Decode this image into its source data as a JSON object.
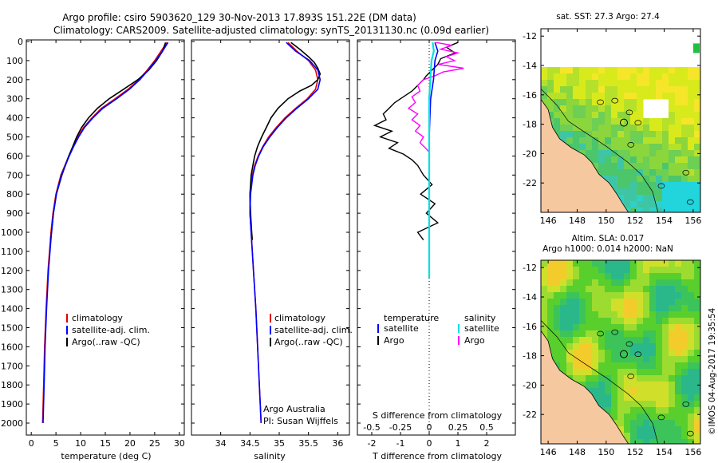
{
  "header": {
    "line1": "Argo profile: csiro 5903620_129 30-Nov-2013 17.893S 151.22E (DM data)",
    "line2": "Climatology: CARS2009. Satellite-adjusted climatology: synTS_20131130.nc (0.09d earlier)"
  },
  "footer_stamp": "©IMOS 04-Aug-2017 19:35:54",
  "colors": {
    "climatology": "#e00000",
    "satellite": "#0000ff",
    "argo": "#000000",
    "sal_satellite": "#00e0e0",
    "sal_argo": "#ff00ff",
    "land": "#f6c8a0"
  },
  "chart_data": [
    {
      "type": "line",
      "id": "temperature",
      "xlabel": "temperature (deg C)",
      "xlim": [
        -1,
        31
      ],
      "xticks": [
        0,
        5,
        10,
        15,
        20,
        25,
        30
      ],
      "ylim": [
        2000,
        0
      ],
      "yticks": [
        0,
        100,
        200,
        300,
        400,
        500,
        600,
        700,
        800,
        900,
        1000,
        1100,
        1200,
        1300,
        1400,
        1500,
        1600,
        1700,
        1800,
        1900,
        2000
      ],
      "legend": [
        "climatology",
        "satellite-adj. clim.",
        "Argo(..raw -QC)"
      ],
      "series": [
        {
          "name": "climatology",
          "depth": [
            5,
            50,
            100,
            150,
            200,
            250,
            300,
            350,
            400,
            450,
            500,
            550,
            600,
            650,
            700,
            800,
            900,
            1000,
            1200,
            1400,
            1600,
            1800,
            2000
          ],
          "values": [
            27.5,
            26.3,
            25.0,
            23.5,
            21.8,
            19.6,
            17.0,
            14.2,
            12.3,
            10.6,
            9.4,
            8.5,
            7.6,
            6.8,
            6.0,
            5.0,
            4.4,
            4.0,
            3.4,
            3.0,
            2.7,
            2.5,
            2.3
          ]
        },
        {
          "name": "satellite-adj. clim.",
          "depth": [
            5,
            50,
            100,
            150,
            200,
            250,
            300,
            350,
            400,
            450,
            500,
            550,
            600,
            650,
            700,
            800,
            900,
            1000,
            1200,
            1400,
            1600,
            1800,
            2000
          ],
          "values": [
            27.7,
            26.6,
            25.2,
            23.7,
            22.0,
            19.9,
            17.3,
            14.5,
            12.5,
            10.8,
            9.6,
            8.6,
            7.7,
            6.9,
            6.1,
            5.1,
            4.5,
            4.1,
            3.5,
            3.1,
            2.8,
            2.6,
            2.4
          ]
        },
        {
          "name": "Argo",
          "depth": [
            5,
            50,
            100,
            150,
            200,
            250,
            300,
            350,
            400,
            450,
            500,
            550,
            600,
            650,
            700,
            800,
            900,
            1000,
            1040
          ],
          "values": [
            27.2,
            26.6,
            25.4,
            23.8,
            21.6,
            18.7,
            15.8,
            13.4,
            11.6,
            10.2,
            9.2,
            8.4,
            7.6,
            6.9,
            6.2,
            5.1,
            4.5,
            4.1,
            3.9
          ]
        }
      ]
    },
    {
      "type": "line",
      "id": "salinity",
      "xlabel": "salinity",
      "xlim": [
        33.5,
        36.2
      ],
      "xticks": [
        34,
        34.5,
        35,
        35.5,
        36
      ],
      "ylim": [
        2000,
        0
      ],
      "legend": [
        "climatology",
        "satellite-adj. clim.",
        "Argo(..raw -QC)"
      ],
      "annotation": [
        "Argo Australia",
        "PI: Susan Wijffels"
      ],
      "series": [
        {
          "name": "climatology",
          "depth": [
            5,
            50,
            100,
            150,
            200,
            250,
            300,
            350,
            400,
            450,
            500,
            550,
            600,
            650,
            700,
            800,
            900,
            1000,
            1200,
            1400,
            1600,
            1800,
            2000
          ],
          "values": [
            35.15,
            35.3,
            35.5,
            35.62,
            35.66,
            35.62,
            35.48,
            35.28,
            35.1,
            34.95,
            34.82,
            34.72,
            34.64,
            34.58,
            34.54,
            34.5,
            34.5,
            34.52,
            34.56,
            34.6,
            34.63,
            34.66,
            34.69
          ]
        },
        {
          "name": "satellite-adj. clim.",
          "depth": [
            5,
            50,
            100,
            150,
            200,
            250,
            300,
            350,
            400,
            450,
            500,
            550,
            600,
            650,
            700,
            800,
            900,
            1000,
            1200,
            1400,
            1600,
            1800,
            2000
          ],
          "values": [
            35.12,
            35.28,
            35.52,
            35.66,
            35.7,
            35.66,
            35.5,
            35.3,
            35.12,
            34.97,
            34.84,
            34.73,
            34.65,
            34.59,
            34.55,
            34.51,
            34.5,
            34.52,
            34.56,
            34.6,
            34.63,
            34.66,
            34.69
          ]
        },
        {
          "name": "Argo",
          "depth": [
            5,
            40,
            80,
            110,
            140,
            170,
            200,
            230,
            260,
            300,
            350,
            400,
            450,
            500,
            550,
            600,
            650,
            700,
            800,
            900,
            1000,
            1040
          ],
          "values": [
            35.2,
            35.35,
            35.5,
            35.6,
            35.66,
            35.7,
            35.66,
            35.55,
            35.35,
            35.15,
            34.98,
            34.86,
            34.78,
            34.7,
            34.63,
            34.58,
            34.55,
            34.52,
            34.5,
            34.51,
            34.53,
            34.54
          ]
        }
      ]
    },
    {
      "type": "line",
      "id": "difference",
      "xlabel": "T difference from climatology",
      "xlabel_top": "S difference from climatology",
      "xlim_T": [
        -2.5,
        3.0
      ],
      "xticks_T": [
        -2,
        -1,
        0,
        1,
        2
      ],
      "xticks_S": [
        "-0.5",
        "-0.25",
        "0",
        "0.25",
        "0.5"
      ],
      "ylim": [
        2000,
        0
      ],
      "legend_headers": [
        "temperature",
        "salinity"
      ],
      "legend": [
        "satellite",
        "Argo",
        "satellite",
        "Argo"
      ],
      "series": [
        {
          "name": "T satellite",
          "depth": [
            5,
            50,
            100,
            200,
            300,
            500,
            700,
            900,
            1100,
            1240
          ],
          "values": [
            0.2,
            0.3,
            0.2,
            0.15,
            0.05,
            0.0,
            0.0,
            0.0,
            0.0,
            0.0
          ]
        },
        {
          "name": "T Argo",
          "depth": [
            5,
            30,
            60,
            90,
            120,
            150,
            180,
            200,
            230,
            260,
            290,
            320,
            350,
            380,
            410,
            440,
            470,
            500,
            530,
            560,
            590,
            620,
            650,
            700,
            750,
            800,
            850,
            900,
            950,
            1000,
            1040
          ],
          "values": [
            1.0,
            0.6,
            0.9,
            0.4,
            0.3,
            0.1,
            -0.1,
            -0.2,
            -0.4,
            -0.6,
            -0.9,
            -1.2,
            -1.4,
            -1.6,
            -1.5,
            -1.9,
            -1.3,
            -1.7,
            -1.1,
            -1.4,
            -0.9,
            -0.6,
            -0.4,
            -0.2,
            0.1,
            -0.3,
            0.2,
            -0.1,
            0.3,
            -0.4,
            -0.2
          ]
        },
        {
          "name": "S satellite",
          "depth": [
            5,
            50,
            100,
            200,
            300,
            500,
            700,
            900,
            1100,
            1240
          ],
          "values": [
            0.03,
            0.04,
            0.02,
            0.01,
            0.0,
            0.0,
            0.0,
            0.0,
            0.0,
            0.0
          ]
        },
        {
          "name": "S Argo",
          "depth": [
            5,
            20,
            40,
            60,
            80,
            100,
            120,
            140,
            160,
            180,
            200,
            230,
            260,
            290,
            320,
            350,
            380,
            410,
            440,
            470,
            500,
            530,
            560,
            580
          ],
          "values": [
            0.06,
            0.2,
            0.1,
            0.25,
            0.15,
            0.22,
            0.08,
            0.3,
            0.12,
            0.05,
            -0.05,
            -0.1,
            -0.08,
            -0.15,
            -0.12,
            -0.18,
            -0.1,
            -0.15,
            -0.08,
            -0.12,
            -0.05,
            -0.08,
            -0.03,
            0.0
          ]
        }
      ]
    },
    {
      "type": "heatmap",
      "id": "sst_map",
      "title": "sat. SST: 27.3  Argo: 27.4",
      "xticks": [
        "146",
        "148",
        "150",
        "152",
        "154",
        "156"
      ],
      "yticks": [
        "-12",
        "-14",
        "-16",
        "-18",
        "-20",
        "-22"
      ],
      "xlim": [
        145.5,
        156.5
      ],
      "ylim": [
        -24,
        -11.5
      ]
    },
    {
      "type": "heatmap",
      "id": "sla_map",
      "title_line1": "Altim. SLA: 0.017",
      "title_line2": "Argo h1000: 0.014 h2000: NaN",
      "xticks": [
        "146",
        "148",
        "150",
        "152",
        "154",
        "156"
      ],
      "yticks": [
        "-12",
        "-14",
        "-16",
        "-18",
        "-20",
        "-22"
      ],
      "xlim": [
        145.5,
        156.5
      ],
      "ylim": [
        -24,
        -11.5
      ]
    }
  ]
}
